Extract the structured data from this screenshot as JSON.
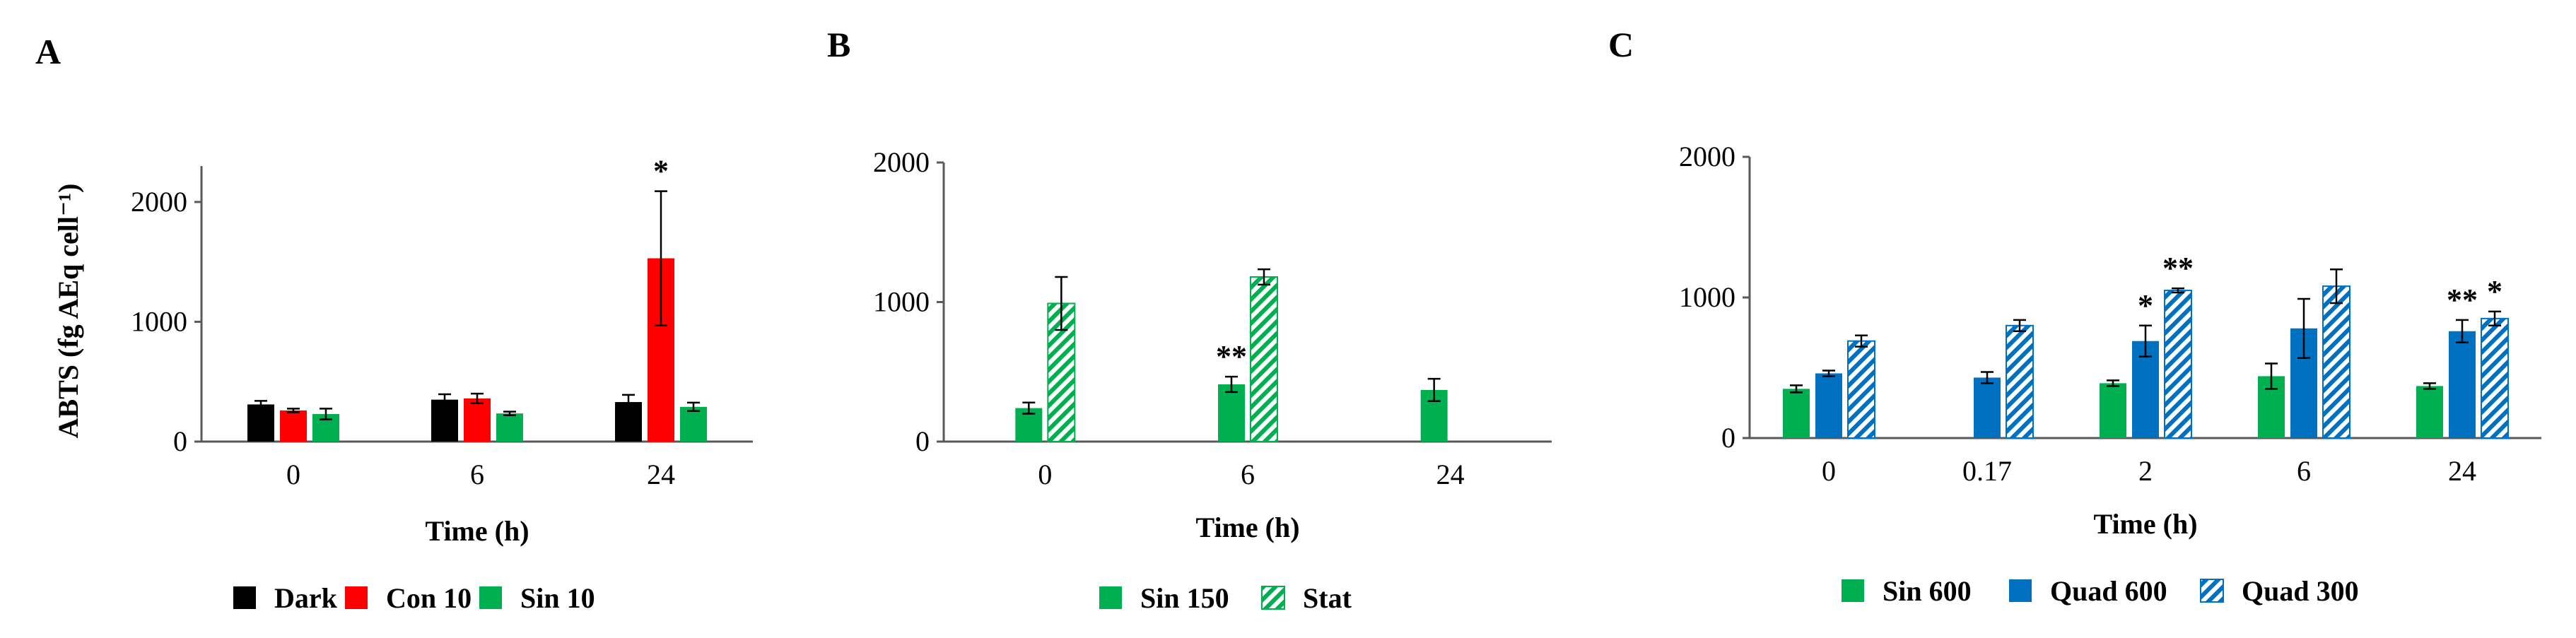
{
  "colors": {
    "dark": "#000000",
    "red": "#ff0000",
    "green": "#00b050",
    "blue": "#0070c0",
    "axis": "#595959"
  },
  "chart_data": [
    {
      "type": "bar",
      "panel_label": "A",
      "ylabel": "ABTS (fg AEq cell⁻¹)",
      "xlabel": "Time (h)",
      "categories": [
        "0",
        "6",
        "24"
      ],
      "ylim": [
        0,
        2300
      ],
      "yticks": [
        0,
        1000,
        2000
      ],
      "legend_position": "bottom",
      "series": [
        {
          "name": "Dark",
          "color": "#000000",
          "pattern": "solid",
          "values": [
            310,
            350,
            330
          ],
          "errors": [
            30,
            45,
            60
          ]
        },
        {
          "name": "Con 10",
          "color": "#ff0000",
          "pattern": "solid",
          "values": [
            260,
            360,
            1530
          ],
          "errors": [
            15,
            40,
            560
          ]
        },
        {
          "name": "Sin 10",
          "color": "#00b050",
          "pattern": "solid",
          "values": [
            230,
            235,
            290
          ],
          "errors": [
            45,
            15,
            35
          ]
        }
      ],
      "annotations": [
        {
          "category": "24",
          "series": "Con 10",
          "text": "*"
        }
      ]
    },
    {
      "type": "bar",
      "panel_label": "B",
      "ylabel": "",
      "xlabel": "Time (h)",
      "categories": [
        "0",
        "6",
        "24"
      ],
      "ylim": [
        0,
        2000
      ],
      "yticks": [
        0,
        1000,
        2000
      ],
      "legend_position": "bottom",
      "series": [
        {
          "name": "Sin 150",
          "color": "#00b050",
          "pattern": "solid",
          "values": [
            240,
            410,
            370
          ],
          "errors": [
            40,
            55,
            80
          ]
        },
        {
          "name": "Stat",
          "color": "#00b050",
          "pattern": "hatch",
          "values": [
            990,
            1180,
            null
          ],
          "errors": [
            190,
            55,
            null
          ]
        }
      ],
      "annotations": [
        {
          "category": "6",
          "series": "Sin 150",
          "text": "**"
        }
      ]
    },
    {
      "type": "bar",
      "panel_label": "C",
      "ylabel": "",
      "xlabel": "Time (h)",
      "categories": [
        "0",
        "0.17",
        "2",
        "6",
        "24"
      ],
      "ylim": [
        0,
        2000
      ],
      "yticks": [
        0,
        1000,
        2000
      ],
      "legend_position": "bottom",
      "series": [
        {
          "name": "Sin 600",
          "color": "#00b050",
          "pattern": "solid",
          "values": [
            350,
            null,
            390,
            440,
            370
          ],
          "errors": [
            25,
            null,
            20,
            90,
            20
          ]
        },
        {
          "name": "Quad 600",
          "color": "#0070c0",
          "pattern": "solid",
          "values": [
            460,
            430,
            690,
            780,
            760
          ],
          "errors": [
            20,
            40,
            110,
            210,
            80
          ]
        },
        {
          "name": "Quad 300",
          "color": "#0070c0",
          "pattern": "hatch",
          "values": [
            690,
            800,
            1050,
            1080,
            850
          ],
          "errors": [
            40,
            40,
            15,
            120,
            50
          ]
        }
      ],
      "annotations": [
        {
          "category": "2",
          "series": "Quad 600",
          "text": "*"
        },
        {
          "category": "2",
          "series": "Quad 300",
          "text": "**"
        },
        {
          "category": "24",
          "series": "Quad 600",
          "text": "**"
        },
        {
          "category": "24",
          "series": "Quad 300",
          "text": "*"
        }
      ]
    }
  ]
}
